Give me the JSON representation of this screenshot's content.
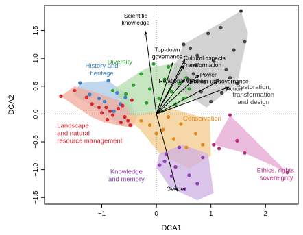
{
  "chart_data": {
    "type": "scatter",
    "title": "",
    "xlabel": "DCA1",
    "ylabel": "DCA2",
    "xlim": [
      -2.05,
      2.6
    ],
    "ylim": [
      -1.62,
      1.95
    ],
    "x_ticks": [
      -1,
      0,
      1,
      2
    ],
    "x_tick_labels": [
      "−1",
      "0",
      "1",
      "2"
    ],
    "y_ticks": [
      -1.5,
      -1.0,
      -0.5,
      0.0,
      0.5,
      1.0,
      1.5
    ],
    "y_tick_labels": [
      "−1.5",
      "−1.0",
      "−0.5",
      "0.0",
      "0.5",
      "1.0",
      "1.5"
    ],
    "reference_lines": {
      "x": 0,
      "y": 0,
      "style": "dotted"
    },
    "groups": [
      {
        "label": "History and heritage",
        "color": "#3a80c3",
        "fill": "#a9c8e6",
        "label_at": [
          -1.0,
          0.83
        ],
        "label_lines": [
          "History and",
          "heritage"
        ],
        "hull": [
          [
            -1.4,
            0.56
          ],
          [
            -0.88,
            0.6
          ],
          [
            -0.57,
            0.37
          ],
          [
            -0.4,
            0.05
          ],
          [
            -0.62,
            -0.22
          ],
          [
            -1.15,
            0.12
          ],
          [
            -1.52,
            0.35
          ]
        ],
        "points": [
          [
            -1.4,
            0.56
          ],
          [
            -0.88,
            0.6
          ],
          [
            -1.22,
            0.35
          ],
          [
            -1.05,
            0.28
          ],
          [
            -0.95,
            0.22
          ],
          [
            -0.72,
            0.38
          ],
          [
            -0.66,
            0.18
          ],
          [
            -0.78,
            0.05
          ],
          [
            -0.57,
            0.3
          ]
        ]
      },
      {
        "label": "Landscape and natural resource management",
        "color": "#d7262a",
        "fill": "#f2a99b",
        "label_at": [
          -1.82,
          -0.25
        ],
        "label_lines": [
          "Landscape",
          "and natural",
          "resource management"
        ],
        "hull": [
          [
            -1.75,
            0.32
          ],
          [
            -1.5,
            0.5
          ],
          [
            -1.0,
            0.35
          ],
          [
            -0.55,
            0.2
          ],
          [
            -0.35,
            -0.05
          ],
          [
            -0.45,
            -0.25
          ],
          [
            -0.95,
            -0.15
          ],
          [
            -1.2,
            -0.05
          ]
        ],
        "points": [
          [
            -1.75,
            0.32
          ],
          [
            -1.5,
            0.42
          ],
          [
            -1.28,
            0.3
          ],
          [
            -1.18,
            0.18
          ],
          [
            -1.05,
            0.12
          ],
          [
            -0.92,
            0.12
          ],
          [
            -0.85,
            0.05
          ],
          [
            -0.8,
            -0.02
          ],
          [
            -0.7,
            0.1
          ],
          [
            -0.62,
            0.15
          ],
          [
            -0.58,
            -0.05
          ],
          [
            -0.52,
            -0.12
          ],
          [
            -0.48,
            -0.2
          ],
          [
            -0.45,
            0.25
          ],
          [
            -0.65,
            -0.15
          ],
          [
            -1.0,
            0.02
          ],
          [
            -0.9,
            -0.1
          ]
        ]
      },
      {
        "label": "Diversity",
        "color": "#2ca02c",
        "fill": "#b6dcae",
        "label_at": [
          -0.67,
          0.9
        ],
        "label_lines": [
          "Diversity"
        ],
        "hull": [
          [
            -0.78,
            0.45
          ],
          [
            -0.2,
            0.82
          ],
          [
            0.38,
            0.92
          ],
          [
            0.68,
            0.65
          ],
          [
            0.72,
            0.3
          ],
          [
            0.2,
            0.05
          ],
          [
            -0.45,
            -0.05
          ]
        ],
        "points": [
          [
            -0.8,
            0.42
          ],
          [
            -0.56,
            0.36
          ],
          [
            -0.42,
            0.52
          ],
          [
            -0.28,
            0.72
          ],
          [
            -0.12,
            0.45
          ],
          [
            -0.05,
            0.9
          ],
          [
            0.05,
            0.28
          ],
          [
            0.15,
            0.62
          ],
          [
            0.22,
            0.85
          ],
          [
            0.28,
            0.4
          ],
          [
            0.35,
            0.18
          ],
          [
            0.42,
            0.55
          ],
          [
            0.5,
            0.28
          ],
          [
            0.6,
            0.45
          ],
          [
            -0.18,
            0.2
          ],
          [
            0.1,
            0.05
          ],
          [
            0.55,
            0.65
          ]
        ]
      },
      {
        "label": "Restoration, transformation and design",
        "color": "#444444",
        "fill": "#c3c3c3",
        "label_at": [
          1.78,
          0.45
        ],
        "label_lines": [
          "Restoration,",
          "transformation",
          "and design"
        ],
        "hull": [
          [
            0.2,
            0.55
          ],
          [
            0.5,
            1.25
          ],
          [
            1.55,
            1.85
          ],
          [
            1.68,
            1.45
          ],
          [
            1.48,
            0.55
          ],
          [
            0.92,
            0.12
          ],
          [
            0.5,
            0.38
          ]
        ],
        "points": [
          [
            0.5,
            1.25
          ],
          [
            0.62,
            1.18
          ],
          [
            0.72,
            0.88
          ],
          [
            0.88,
            0.58
          ],
          [
            0.95,
            1.45
          ],
          [
            1.05,
            0.95
          ],
          [
            1.12,
            0.6
          ],
          [
            1.18,
            1.55
          ],
          [
            1.28,
            0.8
          ],
          [
            1.35,
            0.65
          ],
          [
            1.42,
            1.15
          ],
          [
            1.48,
            0.55
          ],
          [
            1.55,
            1.85
          ],
          [
            1.62,
            1.3
          ],
          [
            1.2,
            0.38
          ],
          [
            1.0,
            0.22
          ],
          [
            0.82,
            0.4
          ],
          [
            0.58,
            0.62
          ],
          [
            0.75,
            1.05
          ],
          [
            0.68,
            0.72
          ]
        ]
      },
      {
        "label": "Conservation",
        "color": "#e08a1e",
        "fill": "#f3c98a",
        "label_at": [
          0.84,
          -0.12
        ],
        "label_lines": [
          "Conservation"
        ],
        "hull": [
          [
            -0.55,
            -0.05
          ],
          [
            0.28,
            0.1
          ],
          [
            0.98,
            -0.1
          ],
          [
            1.0,
            -0.75
          ],
          [
            0.6,
            -0.98
          ],
          [
            0.05,
            -0.7
          ],
          [
            -0.28,
            -0.3
          ]
        ],
        "points": [
          [
            -0.28,
            -0.12
          ],
          [
            -0.12,
            -0.2
          ],
          [
            0.0,
            -0.35
          ],
          [
            0.12,
            -0.28
          ],
          [
            0.22,
            -0.05
          ],
          [
            0.32,
            -0.45
          ],
          [
            0.45,
            -0.18
          ],
          [
            0.55,
            -0.6
          ],
          [
            0.72,
            -0.35
          ],
          [
            0.85,
            -0.55
          ]
        ]
      },
      {
        "label": "Knowledge and memory",
        "color": "#8e3fb3",
        "fill": "#cfb0e1",
        "label_at": [
          -0.55,
          -1.07
        ],
        "label_lines": [
          "Knowledge",
          "and memory"
        ],
        "hull": [
          [
            0.05,
            -0.72
          ],
          [
            0.48,
            -0.55
          ],
          [
            0.95,
            -0.72
          ],
          [
            1.05,
            -1.42
          ],
          [
            0.75,
            -1.55
          ],
          [
            0.25,
            -1.32
          ],
          [
            0.0,
            -0.95
          ]
        ],
        "points": [
          [
            0.06,
            -0.92
          ],
          [
            0.15,
            -0.85
          ],
          [
            0.18,
            -0.72
          ],
          [
            0.28,
            -1.12
          ],
          [
            0.35,
            -0.95
          ],
          [
            0.42,
            -0.6
          ],
          [
            0.52,
            -1.35
          ],
          [
            0.6,
            -1.1
          ],
          [
            0.75,
            -1.25
          ],
          [
            0.85,
            -0.78
          ]
        ]
      },
      {
        "label": "Ethics, rights, sovereignty",
        "color": "#b82c86",
        "fill": "#e4a6cf",
        "label_at": [
          2.2,
          -1.05
        ],
        "label_lines": [
          "Ethics, rights,",
          "sovereignty"
        ],
        "hull": [
          [
            1.05,
            -0.55
          ],
          [
            1.35,
            -0.02
          ],
          [
            2.4,
            -1.05
          ],
          [
            1.62,
            -0.7
          ]
        ],
        "points": [
          [
            1.05,
            -0.55
          ],
          [
            1.15,
            -0.62
          ],
          [
            1.35,
            -0.02
          ],
          [
            1.48,
            -0.48
          ],
          [
            1.62,
            -0.7
          ],
          [
            2.4,
            -1.05
          ]
        ]
      }
    ],
    "vectors": [
      {
        "label": "Scientific knowledge",
        "label_lines": [
          "Scientific",
          "knowledge"
        ],
        "end": [
          -0.2,
          1.48
        ],
        "label_at": [
          -0.38,
          1.73
        ],
        "anchor": "middle"
      },
      {
        "label": "Top-down governance",
        "label_lines": [
          "Top-down",
          "governance"
        ],
        "end": [
          0.3,
          0.92
        ],
        "label_at": [
          0.2,
          1.12
        ],
        "anchor": "middle"
      },
      {
        "label": "Cultural aspects",
        "label_lines": [
          "Cultural aspects"
        ],
        "end": [
          0.52,
          0.97
        ],
        "label_at": [
          0.5,
          0.97
        ],
        "anchor": "start"
      },
      {
        "label": "Transformation",
        "label_lines": [
          "Transformation"
        ],
        "end": [
          0.5,
          0.87
        ],
        "label_at": [
          0.48,
          0.84
        ],
        "anchor": "start"
      },
      {
        "label": "Relational values",
        "label_lines": [
          "Relational values"
        ],
        "end": [
          0.52,
          0.62
        ],
        "label_at": [
          0.45,
          0.56
        ],
        "anchor": "middle"
      },
      {
        "label": "Power",
        "label_lines": [
          "Power"
        ],
        "end": [
          0.78,
          0.7
        ],
        "label_at": [
          0.8,
          0.67
        ],
        "anchor": "start"
      },
      {
        "label": "Bottom-up governance",
        "label_lines": [
          "Bottom-up governance"
        ],
        "end": [
          1.12,
          0.58
        ],
        "label_at": [
          1.15,
          0.55
        ],
        "anchor": "middle"
      },
      {
        "label": "Action",
        "label_lines": [
          "Action"
        ],
        "end": [
          1.32,
          0.48
        ],
        "label_at": [
          1.28,
          0.42
        ],
        "anchor": "start"
      },
      {
        "label": "Gender",
        "label_lines": [
          "Gender"
        ],
        "end": [
          0.38,
          -1.38
        ],
        "label_at": [
          0.36,
          -1.38
        ],
        "anchor": "middle"
      }
    ]
  }
}
